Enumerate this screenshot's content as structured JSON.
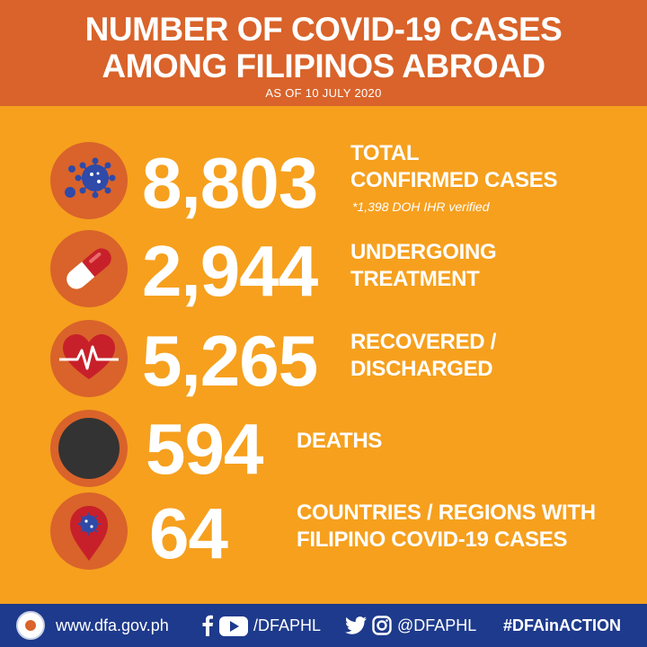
{
  "header": {
    "title_line1": "NUMBER OF COVID-19 CASES",
    "title_line2": "AMONG FILIPINOS ABROAD",
    "as_of": "AS OF 10 JULY 2020"
  },
  "stats": [
    {
      "icon": "virus-icon",
      "value": "8,803",
      "label_line1": "TOTAL",
      "label_line2": "CONFIRMED CASES",
      "note": "*1,398 DOH IHR verified"
    },
    {
      "icon": "pill-capsule-icon",
      "value": "2,944",
      "label_line1": "UNDERGOING",
      "label_line2": "TREATMENT"
    },
    {
      "icon": "heartbeat-icon",
      "value": "5,265",
      "label_line1": "RECOVERED /",
      "label_line2": "DISCHARGED"
    },
    {
      "icon": "black-circle-icon",
      "value": "594",
      "label_line1": "DEATHS"
    },
    {
      "icon": "virus-location-pin-icon",
      "value": "64",
      "label_line1": "COUNTRIES / REGIONS WITH",
      "label_line2": "FILIPINO COVID-19 CASES"
    }
  ],
  "footer": {
    "website": "www.dfa.gov.ph",
    "facebook_youtube_handle": "/DFAPHL",
    "twitter_instagram_handle": "@DFAPHL",
    "hashtag": "#DFAinACTION"
  },
  "colors": {
    "background": "#F6A01E",
    "header": "#D9632A",
    "icon_circle": "#D9632A",
    "footer": "#1E3A8C",
    "virus": "#2F4AA8",
    "pill_red": "#C8202A"
  }
}
